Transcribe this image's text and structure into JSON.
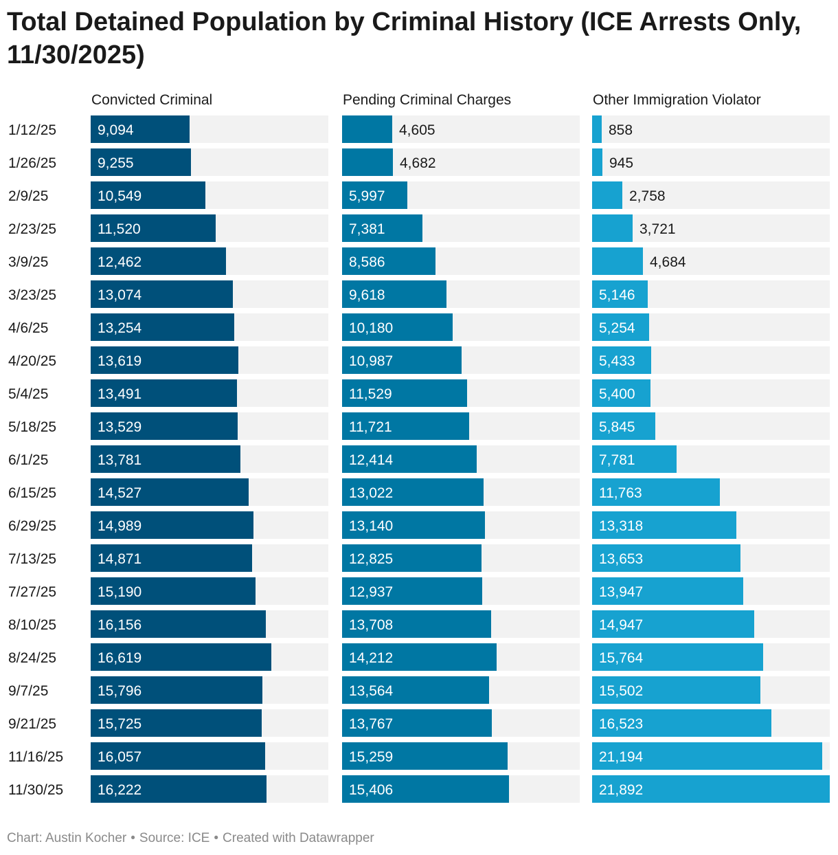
{
  "title": "Total Detained Population by Criminal History (ICE Arrests Only, 11/30/2025)",
  "footer": {
    "chart_credit": "Chart: Austin Kocher",
    "source": "Source: ICE",
    "tool": "Created with Datawrapper"
  },
  "colors": {
    "Convicted Criminal": "#00507a",
    "Pending Criminal Charges": "#0077a3",
    "Other Immigration Violator": "#17a2d0",
    "track": "#f2f2f2"
  },
  "chart_data": {
    "type": "bar",
    "orientation": "horizontal",
    "layout": "small-multiples",
    "categories": [
      "1/12/25",
      "1/26/25",
      "2/9/25",
      "2/23/25",
      "3/9/25",
      "3/23/25",
      "4/6/25",
      "4/20/25",
      "5/4/25",
      "5/18/25",
      "6/1/25",
      "6/15/25",
      "6/29/25",
      "7/13/25",
      "7/27/25",
      "8/10/25",
      "8/24/25",
      "9/7/25",
      "9/21/25",
      "11/16/25",
      "11/30/25"
    ],
    "series": [
      {
        "name": "Convicted Criminal",
        "values": [
          9094,
          9255,
          10549,
          11520,
          12462,
          13074,
          13254,
          13619,
          13491,
          13529,
          13781,
          14527,
          14989,
          14871,
          15190,
          16156,
          16619,
          15796,
          15725,
          16057,
          16222
        ]
      },
      {
        "name": "Pending Criminal Charges",
        "values": [
          4605,
          4682,
          5997,
          7381,
          8586,
          9618,
          10180,
          10987,
          11529,
          11721,
          12414,
          13022,
          13140,
          12825,
          12937,
          13708,
          14212,
          13564,
          13767,
          15259,
          15406
        ]
      },
      {
        "name": "Other Immigration Violator",
        "values": [
          858,
          945,
          2758,
          3721,
          4684,
          5146,
          5254,
          5433,
          5400,
          5845,
          7781,
          11763,
          13318,
          13653,
          13947,
          14947,
          15764,
          15502,
          16523,
          21194,
          21892
        ]
      }
    ],
    "xlim": [
      0,
      21892
    ],
    "grid": false,
    "legend": "none"
  }
}
